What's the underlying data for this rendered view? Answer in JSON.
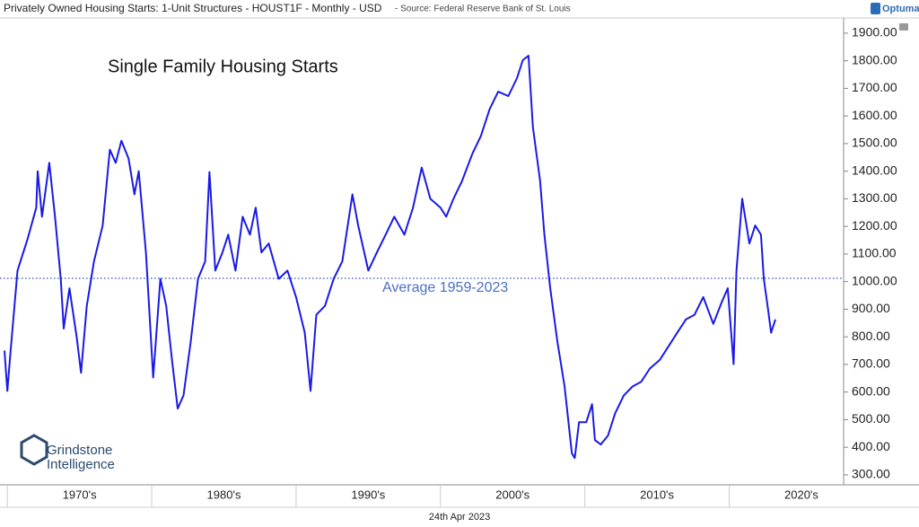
{
  "chart_data": {
    "type": "line",
    "title": "Privately Owned Housing Starts: 1-Unit Structures - HOUST1F - Monthly - USD",
    "source": "- Source: Federal Reserve Bank of St. Louis",
    "brand": "Optuma",
    "annotation": "Single Family Housing Starts",
    "logo": [
      "Grindstone",
      "Intelligence"
    ],
    "date": "24th Apr 2023",
    "reference_line": {
      "value": 1012,
      "label": "Average 1959-2023",
      "color": "#4a6fc7"
    },
    "x": [
      1969.8,
      1970.0,
      1970.2,
      1970.7,
      1971.4,
      1972.0,
      1972.1,
      1972.4,
      1972.9,
      1973.3,
      1973.7,
      1973.9,
      1974.3,
      1974.8,
      1975.1,
      1975.5,
      1976.0,
      1976.6,
      1977.1,
      1977.5,
      1977.9,
      1978.4,
      1978.8,
      1979.1,
      1979.6,
      1980.1,
      1980.6,
      1981.0,
      1981.4,
      1981.8,
      1982.2,
      1982.7,
      1983.2,
      1983.7,
      1984.0,
      1984.4,
      1984.9,
      1985.3,
      1985.8,
      1986.3,
      1986.8,
      1987.2,
      1987.6,
      1988.1,
      1988.8,
      1989.4,
      1990.0,
      1990.6,
      1991.0,
      1991.4,
      1992.0,
      1992.6,
      1993.2,
      1993.9,
      1994.3,
      1995.0,
      1995.6,
      1996.2,
      1996.8,
      1997.5,
      1998.1,
      1998.7,
      1999.3,
      2000.0,
      2000.4,
      2000.9,
      2001.5,
      2002.2,
      2002.8,
      2003.4,
      2004.0,
      2004.7,
      2005.3,
      2005.7,
      2006.1,
      2006.4,
      2006.9,
      2007.2,
      2007.6,
      2008.1,
      2008.6,
      2009.1,
      2009.3,
      2009.6,
      2010.1,
      2010.5,
      2010.7,
      2011.1,
      2011.6,
      2012.1,
      2012.7,
      2013.3,
      2013.9,
      2014.5,
      2015.2,
      2015.8,
      2016.4,
      2017.0,
      2017.6,
      2018.2,
      2018.9,
      2019.5,
      2019.9,
      2020.3,
      2020.5,
      2020.9,
      2021.4,
      2021.8,
      2022.2,
      2022.4,
      2022.7,
      2022.9,
      2023.2
    ],
    "series": [
      {
        "name": "HOUST1F",
        "color": "#1a1ae6",
        "values": [
          750,
          604,
          733,
          1040,
          1154,
          1268,
          1400,
          1235,
          1430,
          1235,
          1010,
          830,
          976,
          800,
          670,
          912,
          1073,
          1203,
          1478,
          1430,
          1510,
          1445,
          1316,
          1400,
          1106,
          653,
          1010,
          912,
          717,
          540,
          588,
          782,
          1010,
          1073,
          1397,
          1040,
          1106,
          1170,
          1040,
          1235,
          1170,
          1268,
          1106,
          1138,
          1010,
          1040,
          944,
          815,
          604,
          880,
          912,
          1010,
          1073,
          1316,
          1203,
          1040,
          1106,
          1170,
          1235,
          1170,
          1268,
          1413,
          1300,
          1268,
          1235,
          1300,
          1365,
          1462,
          1527,
          1624,
          1688,
          1672,
          1737,
          1802,
          1818,
          1559,
          1365,
          1170,
          976,
          782,
          620,
          378,
          361,
          491,
          491,
          556,
          426,
          410,
          442,
          523,
          588,
          620,
          637,
          685,
          717,
          766,
          815,
          863,
          880,
          944,
          847,
          928,
          976,
          701,
          1040,
          1300,
          1138,
          1203,
          1170,
          1010,
          895,
          815,
          863
        ]
      }
    ],
    "xlim": [
      1969.8,
      2027.8
    ],
    "xticks": [
      {
        "value": 1970,
        "label": "1970's"
      },
      {
        "value": 1980,
        "label": "1980's"
      },
      {
        "value": 1990,
        "label": "1990's"
      },
      {
        "value": 2000,
        "label": "2000's"
      },
      {
        "value": 2010,
        "label": "2010's"
      },
      {
        "value": 2020,
        "label": "2020's"
      }
    ],
    "ylim": [
      264,
      1955
    ],
    "yticks": [
      {
        "value": 300,
        "label": "300.00"
      },
      {
        "value": 400,
        "label": "400.00"
      },
      {
        "value": 500,
        "label": "500.00"
      },
      {
        "value": 600,
        "label": "600.00"
      },
      {
        "value": 700,
        "label": "700.00"
      },
      {
        "value": 800,
        "label": "800.00"
      },
      {
        "value": 900,
        "label": "900.00"
      },
      {
        "value": 1000,
        "label": "1000.00"
      },
      {
        "value": 1100,
        "label": "1100.00"
      },
      {
        "value": 1200,
        "label": "1200.00"
      },
      {
        "value": 1300,
        "label": "1300.00"
      },
      {
        "value": 1400,
        "label": "1400.00"
      },
      {
        "value": 1500,
        "label": "1500.00"
      },
      {
        "value": 1600,
        "label": "1600.00"
      },
      {
        "value": 1700,
        "label": "1700.00"
      },
      {
        "value": 1800,
        "label": "1800.00"
      },
      {
        "value": 1900,
        "label": "1900.00"
      }
    ]
  }
}
